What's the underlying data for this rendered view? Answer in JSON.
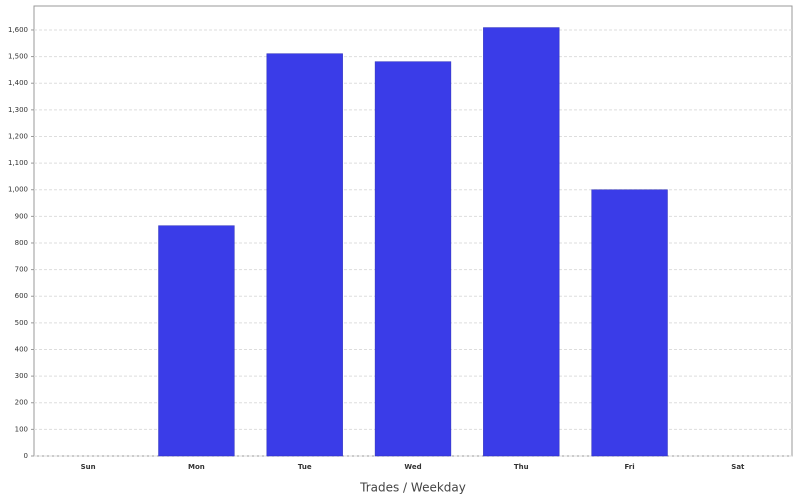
{
  "chart_data": {
    "type": "bar",
    "x_label": "Trades / Weekday",
    "categories": [
      "Sun",
      "Mon",
      "Tue",
      "Wed",
      "Thu",
      "Fri",
      "Sat"
    ],
    "values": [
      0,
      865,
      1511,
      1481,
      1609,
      1000,
      0
    ],
    "color": "#3a3ce8",
    "ylim": [
      0,
      1690
    ],
    "yticks": [
      0,
      100,
      200,
      300,
      400,
      500,
      600,
      700,
      800,
      900,
      {
        "value": 1000,
        "label": "1,000"
      },
      {
        "value": 1100,
        "label": "1,100"
      },
      {
        "value": 1200,
        "label": "1,200"
      },
      {
        "value": 1300,
        "label": "1,300"
      },
      {
        "value": 1400,
        "label": "1,400"
      },
      {
        "value": 1500,
        "label": "1,500"
      },
      {
        "value": 1600,
        "label": "1,600"
      }
    ],
    "grid": true
  }
}
